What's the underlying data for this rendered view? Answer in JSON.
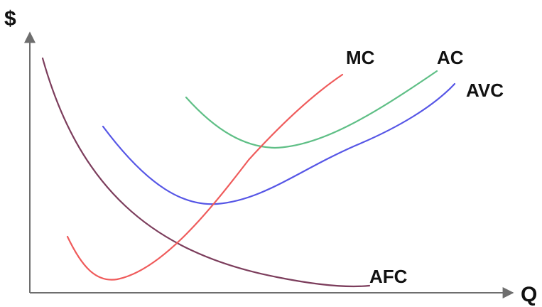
{
  "axes": {
    "y_label": "$",
    "x_label": "Q"
  },
  "curves": {
    "mc": {
      "label": "MC",
      "color": "#ef5b5b"
    },
    "ac": {
      "label": "AC",
      "color": "#5fbf86"
    },
    "avc": {
      "label": "AVC",
      "color": "#5656e6"
    },
    "afc": {
      "label": "AFC",
      "color": "#7c3d5c"
    }
  }
}
